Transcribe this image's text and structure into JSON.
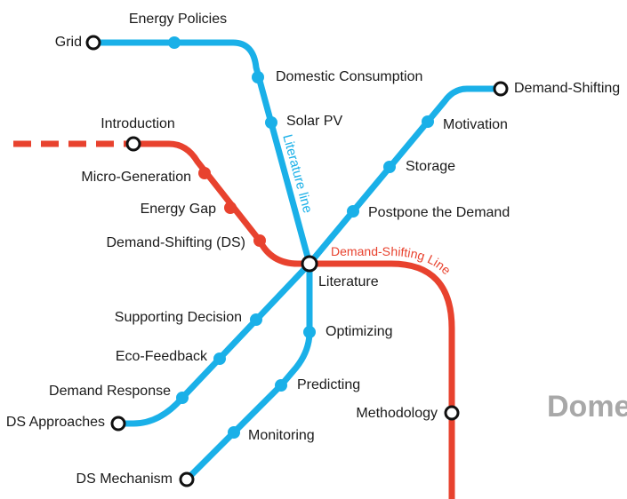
{
  "stations": [
    "Grid",
    "Energy Policies",
    "Domestic Consumption",
    "Solar PV",
    "Introduction",
    "Micro-Generation",
    "Energy Gap",
    "Demand-Shifting (DS)",
    "Literature",
    "Demand-Shifting",
    "Motivation",
    "Storage",
    "Postpone the Demand",
    "Supporting Decision",
    "Eco-Feedback",
    "Demand Response",
    "DS Approaches",
    "Optimizing",
    "Predicting",
    "Monitoring",
    "DS Mechanism",
    "Methodology"
  ],
  "lines": {
    "literature": "Literature line",
    "demand_shifting": "Demand-Shifting Line"
  },
  "section_label": "Dome"
}
